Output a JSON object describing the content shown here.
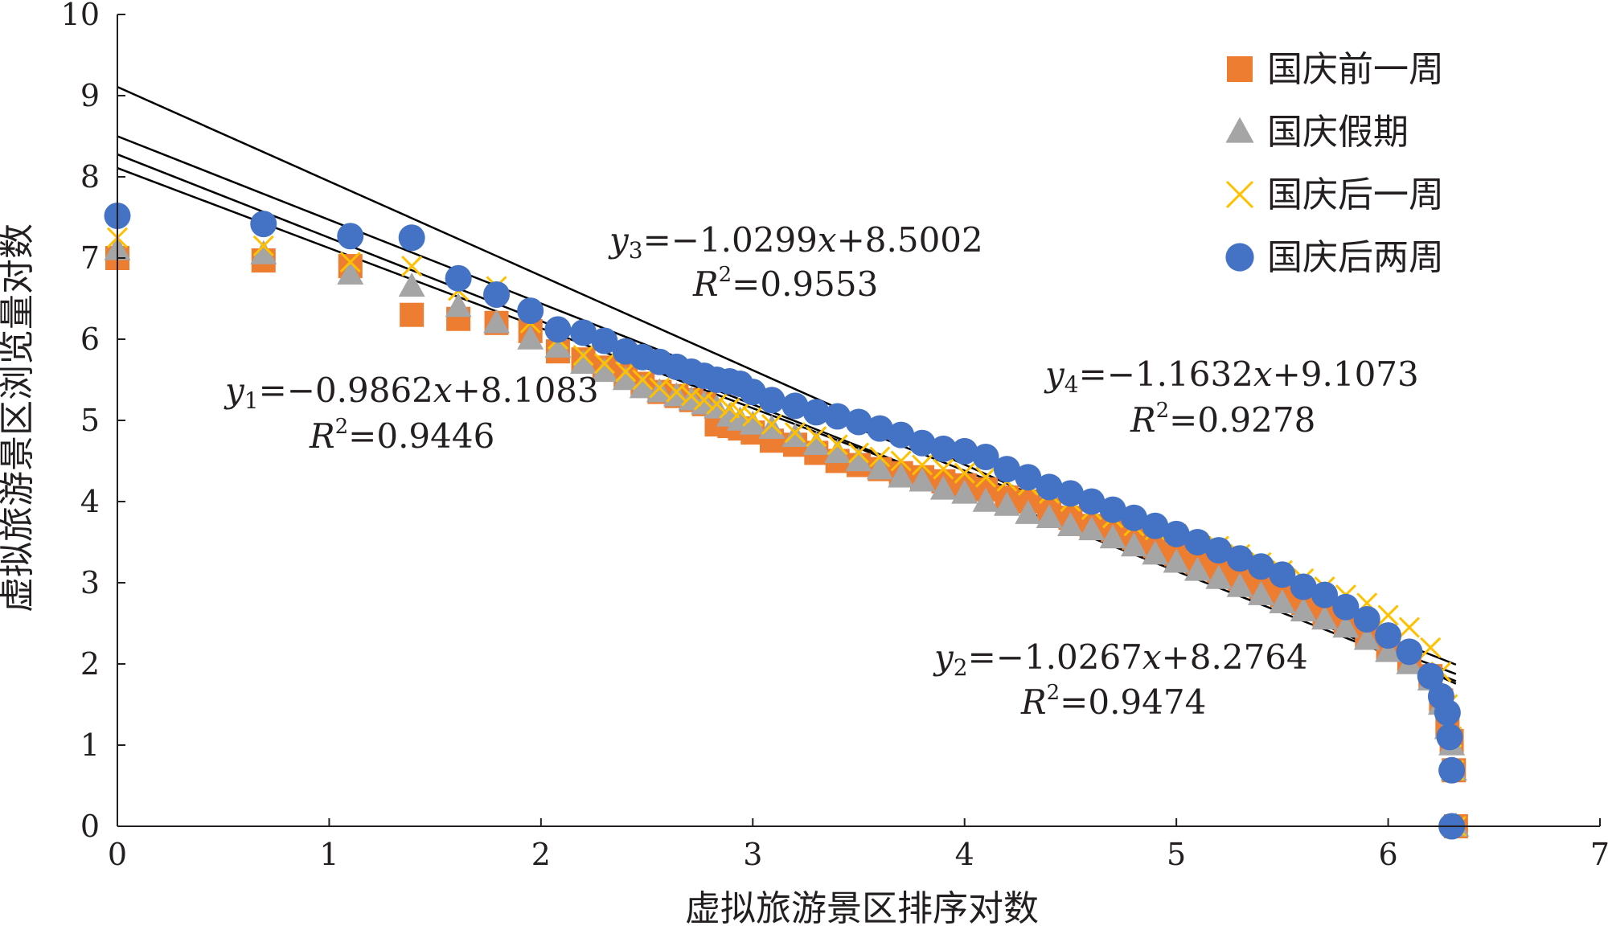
{
  "chart_data": {
    "type": "scatter",
    "xlabel": "虚拟旅游景区排序对数",
    "ylabel": "虚拟旅游景区浏览量对数",
    "xlim": [
      0,
      7
    ],
    "ylim": [
      0,
      10
    ],
    "xticks": [
      0,
      1,
      2,
      3,
      4,
      5,
      6,
      7
    ],
    "yticks": [
      0,
      1,
      2,
      3,
      4,
      5,
      6,
      7,
      8,
      9,
      10
    ],
    "grid": false,
    "legend_position": "top-right",
    "series": [
      {
        "name": "国庆前一周",
        "marker": "square",
        "color": "#ed7d31",
        "points": [
          [
            0,
            7.0
          ],
          [
            0.69,
            6.97
          ],
          [
            1.1,
            6.9
          ],
          [
            1.39,
            6.3
          ],
          [
            1.61,
            6.25
          ],
          [
            1.79,
            6.2
          ],
          [
            1.95,
            6.1
          ],
          [
            2.08,
            5.85
          ],
          [
            2.2,
            5.75
          ],
          [
            2.3,
            5.65
          ],
          [
            2.4,
            5.55
          ],
          [
            2.48,
            5.45
          ],
          [
            2.56,
            5.35
          ],
          [
            2.64,
            5.3
          ],
          [
            2.71,
            5.25
          ],
          [
            2.77,
            5.2
          ],
          [
            2.83,
            4.95
          ],
          [
            2.89,
            4.93
          ],
          [
            2.94,
            4.9
          ],
          [
            3.0,
            4.85
          ],
          [
            3.09,
            4.75
          ],
          [
            3.2,
            4.7
          ],
          [
            3.3,
            4.6
          ],
          [
            3.4,
            4.5
          ],
          [
            3.5,
            4.45
          ],
          [
            3.6,
            4.4
          ],
          [
            3.7,
            4.35
          ],
          [
            3.8,
            4.3
          ],
          [
            3.9,
            4.25
          ],
          [
            4.0,
            4.2
          ],
          [
            4.1,
            4.15
          ],
          [
            4.2,
            4.05
          ],
          [
            4.3,
            4.0
          ],
          [
            4.4,
            3.9
          ],
          [
            4.5,
            3.8
          ],
          [
            4.6,
            3.7
          ],
          [
            4.7,
            3.65
          ],
          [
            4.8,
            3.55
          ],
          [
            4.9,
            3.45
          ],
          [
            5.0,
            3.35
          ],
          [
            5.1,
            3.25
          ],
          [
            5.2,
            3.15
          ],
          [
            5.3,
            3.05
          ],
          [
            5.4,
            2.95
          ],
          [
            5.5,
            2.85
          ],
          [
            5.6,
            2.75
          ],
          [
            5.7,
            2.6
          ],
          [
            5.8,
            2.5
          ],
          [
            5.9,
            2.35
          ],
          [
            6.0,
            2.2
          ],
          [
            6.1,
            2.05
          ],
          [
            6.2,
            1.85
          ],
          [
            6.25,
            1.55
          ],
          [
            6.28,
            1.25
          ],
          [
            6.3,
            1.05
          ],
          [
            6.31,
            0.69
          ],
          [
            6.32,
            0.0
          ]
        ]
      },
      {
        "name": "国庆假期",
        "marker": "triangle",
        "color": "#a5a5a5",
        "points": [
          [
            0,
            7.1
          ],
          [
            0.69,
            7.05
          ],
          [
            1.1,
            6.8
          ],
          [
            1.39,
            6.65
          ],
          [
            1.61,
            6.4
          ],
          [
            1.79,
            6.2
          ],
          [
            1.95,
            6.0
          ],
          [
            2.08,
            5.9
          ],
          [
            2.2,
            5.7
          ],
          [
            2.3,
            5.6
          ],
          [
            2.4,
            5.5
          ],
          [
            2.48,
            5.4
          ],
          [
            2.56,
            5.35
          ],
          [
            2.64,
            5.3
          ],
          [
            2.71,
            5.25
          ],
          [
            2.77,
            5.2
          ],
          [
            2.83,
            5.15
          ],
          [
            2.89,
            5.05
          ],
          [
            2.94,
            5.0
          ],
          [
            3.0,
            4.95
          ],
          [
            3.09,
            4.9
          ],
          [
            3.2,
            4.8
          ],
          [
            3.3,
            4.7
          ],
          [
            3.4,
            4.6
          ],
          [
            3.5,
            4.5
          ],
          [
            3.6,
            4.4
          ],
          [
            3.7,
            4.3
          ],
          [
            3.8,
            4.25
          ],
          [
            3.9,
            4.15
          ],
          [
            4.0,
            4.1
          ],
          [
            4.1,
            4.0
          ],
          [
            4.2,
            3.95
          ],
          [
            4.3,
            3.85
          ],
          [
            4.4,
            3.8
          ],
          [
            4.5,
            3.7
          ],
          [
            4.6,
            3.65
          ],
          [
            4.7,
            3.55
          ],
          [
            4.8,
            3.45
          ],
          [
            4.9,
            3.35
          ],
          [
            5.0,
            3.25
          ],
          [
            5.1,
            3.15
          ],
          [
            5.2,
            3.05
          ],
          [
            5.3,
            2.95
          ],
          [
            5.4,
            2.85
          ],
          [
            5.5,
            2.75
          ],
          [
            5.6,
            2.65
          ],
          [
            5.7,
            2.55
          ],
          [
            5.8,
            2.45
          ],
          [
            5.9,
            2.3
          ],
          [
            6.0,
            2.15
          ],
          [
            6.1,
            2.0
          ],
          [
            6.2,
            1.8
          ],
          [
            6.25,
            1.5
          ],
          [
            6.28,
            1.2
          ],
          [
            6.3,
            1.0
          ],
          [
            6.31,
            0.69
          ],
          [
            6.32,
            0.0
          ]
        ]
      },
      {
        "name": "国庆后一周",
        "marker": "x",
        "color": "#ffc000",
        "points": [
          [
            0,
            7.25
          ],
          [
            0.69,
            7.15
          ],
          [
            1.1,
            6.95
          ],
          [
            1.39,
            6.9
          ],
          [
            1.61,
            6.6
          ],
          [
            1.79,
            6.65
          ],
          [
            1.95,
            6.2
          ],
          [
            2.08,
            6.0
          ],
          [
            2.2,
            5.8
          ],
          [
            2.3,
            5.7
          ],
          [
            2.4,
            5.6
          ],
          [
            2.48,
            5.5
          ],
          [
            2.56,
            5.4
          ],
          [
            2.64,
            5.35
          ],
          [
            2.71,
            5.3
          ],
          [
            2.77,
            5.25
          ],
          [
            2.83,
            5.2
          ],
          [
            2.89,
            5.15
          ],
          [
            2.94,
            5.1
          ],
          [
            3.0,
            5.05
          ],
          [
            3.09,
            4.95
          ],
          [
            3.2,
            4.85
          ],
          [
            3.3,
            4.8
          ],
          [
            3.4,
            4.7
          ],
          [
            3.5,
            4.6
          ],
          [
            3.6,
            4.55
          ],
          [
            3.7,
            4.5
          ],
          [
            3.8,
            4.45
          ],
          [
            3.9,
            4.4
          ],
          [
            4.0,
            4.35
          ],
          [
            4.1,
            4.3
          ],
          [
            4.2,
            4.25
          ],
          [
            4.3,
            4.2
          ],
          [
            4.4,
            4.1
          ],
          [
            4.5,
            4.0
          ],
          [
            4.6,
            3.9
          ],
          [
            4.7,
            3.8
          ],
          [
            4.8,
            3.7
          ],
          [
            4.9,
            3.65
          ],
          [
            5.0,
            3.6
          ],
          [
            5.1,
            3.5
          ],
          [
            5.2,
            3.45
          ],
          [
            5.3,
            3.35
          ],
          [
            5.4,
            3.25
          ],
          [
            5.5,
            3.15
          ],
          [
            5.6,
            3.05
          ],
          [
            5.7,
            2.95
          ],
          [
            5.8,
            2.85
          ],
          [
            5.9,
            2.75
          ],
          [
            6.0,
            2.6
          ],
          [
            6.1,
            2.45
          ],
          [
            6.2,
            2.2
          ],
          [
            6.25,
            1.9
          ],
          [
            6.28,
            1.5
          ],
          [
            6.3,
            1.1
          ],
          [
            6.31,
            0.69
          ],
          [
            6.32,
            0.0
          ]
        ]
      },
      {
        "name": "国庆后两周",
        "marker": "circle",
        "color": "#4472c4",
        "points": [
          [
            0,
            7.52
          ],
          [
            0.69,
            7.42
          ],
          [
            1.1,
            7.27
          ],
          [
            1.39,
            7.25
          ],
          [
            1.61,
            6.75
          ],
          [
            1.79,
            6.55
          ],
          [
            1.95,
            6.35
          ],
          [
            2.08,
            6.12
          ],
          [
            2.2,
            6.08
          ],
          [
            2.3,
            5.98
          ],
          [
            2.4,
            5.85
          ],
          [
            2.48,
            5.78
          ],
          [
            2.56,
            5.72
          ],
          [
            2.64,
            5.66
          ],
          [
            2.71,
            5.6
          ],
          [
            2.77,
            5.55
          ],
          [
            2.83,
            5.5
          ],
          [
            2.89,
            5.48
          ],
          [
            2.94,
            5.45
          ],
          [
            3.0,
            5.35
          ],
          [
            3.09,
            5.25
          ],
          [
            3.2,
            5.18
          ],
          [
            3.3,
            5.1
          ],
          [
            3.4,
            5.05
          ],
          [
            3.5,
            4.98
          ],
          [
            3.6,
            4.9
          ],
          [
            3.7,
            4.82
          ],
          [
            3.8,
            4.72
          ],
          [
            3.9,
            4.65
          ],
          [
            4.0,
            4.62
          ],
          [
            4.1,
            4.55
          ],
          [
            4.2,
            4.4
          ],
          [
            4.3,
            4.3
          ],
          [
            4.4,
            4.18
          ],
          [
            4.5,
            4.1
          ],
          [
            4.6,
            4.0
          ],
          [
            4.7,
            3.9
          ],
          [
            4.8,
            3.8
          ],
          [
            4.9,
            3.7
          ],
          [
            5.0,
            3.6
          ],
          [
            5.1,
            3.5
          ],
          [
            5.2,
            3.4
          ],
          [
            5.3,
            3.3
          ],
          [
            5.4,
            3.2
          ],
          [
            5.5,
            3.1
          ],
          [
            5.6,
            2.95
          ],
          [
            5.7,
            2.85
          ],
          [
            5.8,
            2.7
          ],
          [
            5.9,
            2.55
          ],
          [
            6.0,
            2.35
          ],
          [
            6.1,
            2.15
          ],
          [
            6.2,
            1.85
          ],
          [
            6.25,
            1.6
          ],
          [
            6.28,
            1.4
          ],
          [
            6.29,
            1.1
          ],
          [
            6.3,
            0.69
          ],
          [
            6.3,
            0.0
          ]
        ]
      }
    ],
    "trendlines": [
      {
        "label": "y1",
        "slope": -0.9862,
        "intercept": 8.1083
      },
      {
        "label": "y2",
        "slope": -1.0267,
        "intercept": 8.2764
      },
      {
        "label": "y3",
        "slope": -1.0299,
        "intercept": 8.5002
      },
      {
        "label": "y4",
        "slope": -1.1632,
        "intercept": 9.1073
      }
    ],
    "trendline_x_range": [
      0,
      6.32
    ],
    "annotations": [
      {
        "var": "y",
        "sub": "1",
        "rhs": "=−0.9862",
        "xvar": "x",
        "tail": "+8.1083",
        "r2": "=0.9446"
      },
      {
        "var": "y",
        "sub": "2",
        "rhs": "=−1.0267",
        "xvar": "x",
        "tail": "+8.2764",
        "r2": "=0.9474"
      },
      {
        "var": "y",
        "sub": "3",
        "rhs": "=−1.0299",
        "xvar": "x",
        "tail": "+8.5002",
        "r2": "=0.9553"
      },
      {
        "var": "y",
        "sub": "4",
        "rhs": "=−1.1632",
        "xvar": "x",
        "tail": "+9.1073",
        "r2": "=0.9278"
      }
    ],
    "r2_symbol": "R",
    "r2_power": "2"
  }
}
